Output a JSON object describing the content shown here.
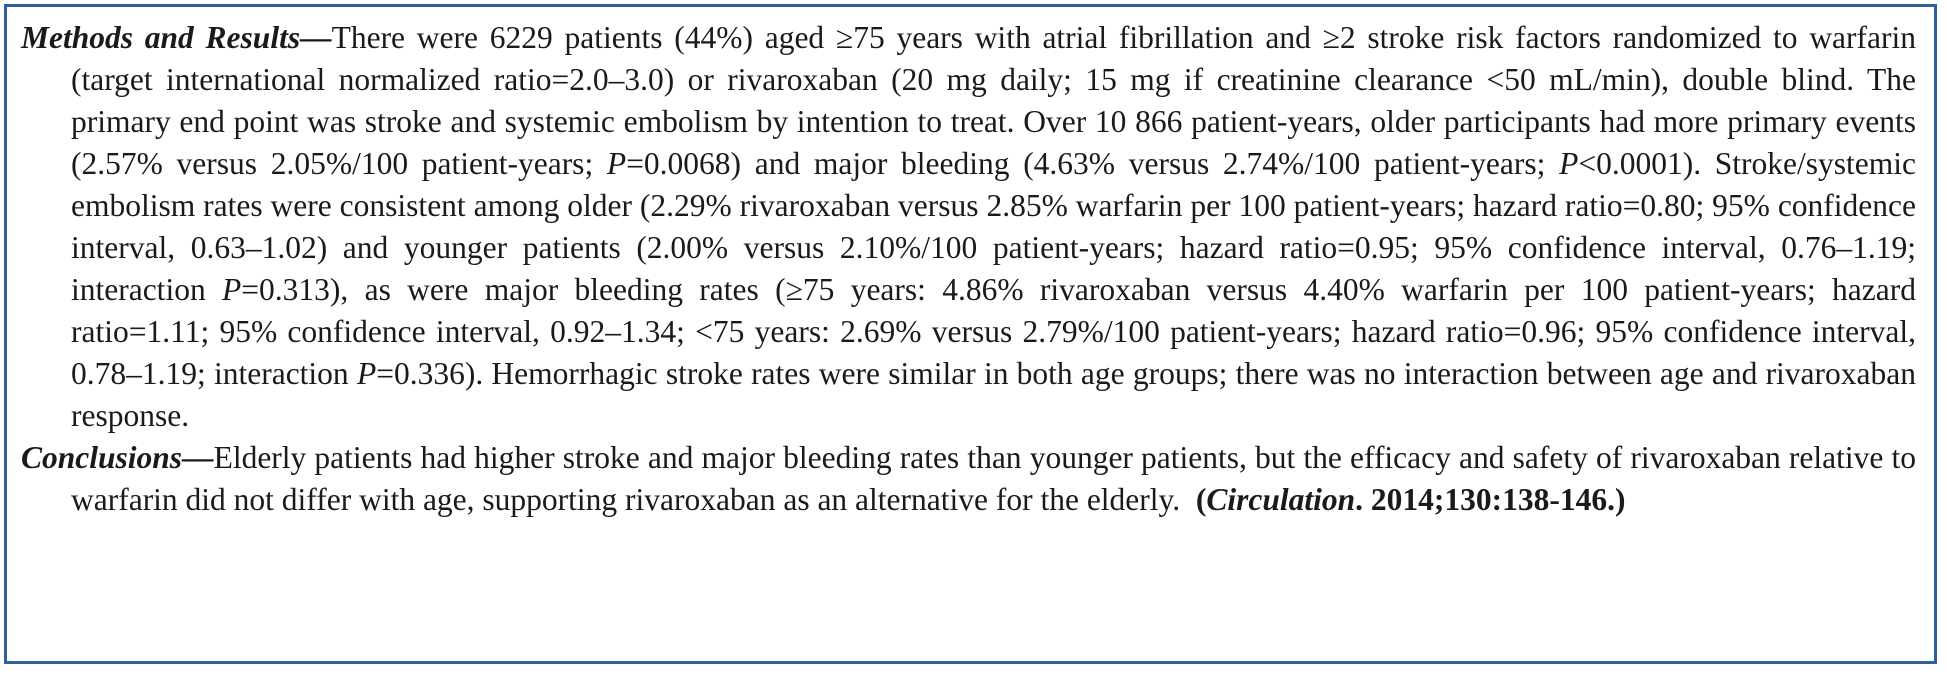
{
  "methods": {
    "heading": "Methods and Results",
    "dash": "—",
    "s1": "There were 6229 patients (44%) aged ≥75 years with atrial fibrillation and ≥2 stroke risk factors randomized to warfarin (target international normalized ratio=2.0–3.0) or rivaroxaban (20 mg daily; 15 mg if creatinine clearance <50 mL/min), double blind. The primary end point was stroke and systemic embolism by intention to treat. Over 10 866 patient-years, older participants had more primary events (2.57% versus 2.05%/100 patient-years; ",
    "p1_label": "P",
    "s2": "=0.0068) and major bleeding (4.63% versus 2.74%/100 patient-years; ",
    "p2_label": "P",
    "s3": "<0.0001). Stroke/systemic embolism rates were consistent among older (2.29% rivaroxaban versus 2.85% warfarin per 100 patient-years; hazard ratio=0.80; 95% confidence interval, 0.63–1.02) and younger patients (2.00% versus 2.10%/100 patient-years; hazard ratio=0.95; 95% confidence interval, 0.76–1.19; interaction ",
    "p3_label": "P",
    "s4": "=0.313), as were major bleeding rates (≥75 years: 4.86% rivaroxaban versus 4.40% warfarin per 100 patient-years; hazard ratio=1.11; 95% confidence interval, 0.92–1.34; <75 years: 2.69% versus 2.79%/100 patient-years; hazard ratio=0.96; 95% confidence interval, 0.78–1.19; interaction ",
    "p4_label": "P",
    "s5": "=0.336). Hemorrhagic stroke rates were similar in both age groups; there was no interaction between age and rivaroxaban response."
  },
  "conclusions": {
    "heading": "Conclusions",
    "dash": "—",
    "text": "Elderly patients had higher stroke and major bleeding rates than younger patients, but the efficacy and safety of rivaroxaban relative to warfarin did not differ with age, supporting rivaroxaban as an alternative for the elderly.  ",
    "cite_open": "(",
    "cite_journal": "Circulation",
    "cite_rest": ". 2014;130:138-146.)"
  }
}
